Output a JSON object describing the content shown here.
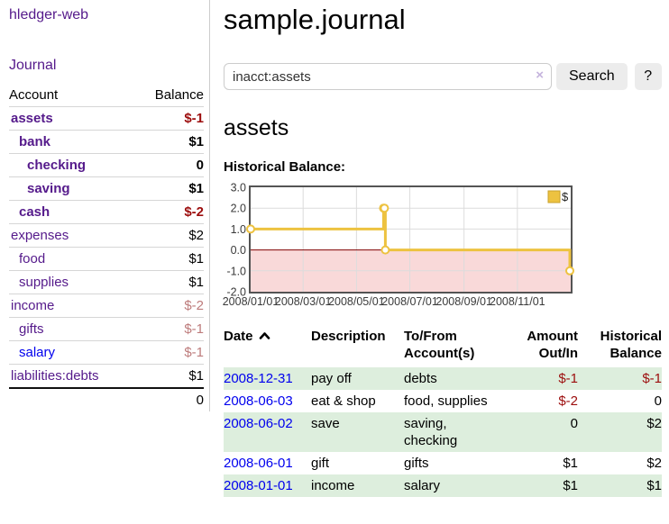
{
  "colors": {
    "link_purple": "#551A8B",
    "link_blue": "#0000EE",
    "negative_strong": "#9c0d0d",
    "negative_soft": "#bd7b7b",
    "row_green": "#ddeedd",
    "button_gray": "#ececec"
  },
  "sidebar": {
    "brand": "hledger-web",
    "journal_link": "Journal",
    "accounts_table": {
      "headers": [
        "Account",
        "Balance"
      ],
      "rows": [
        {
          "name": "assets",
          "level": 0,
          "bold": true,
          "link": "purple",
          "balance": "$-1",
          "tone": "neg-strong"
        },
        {
          "name": "bank",
          "level": 1,
          "bold": true,
          "link": "purple",
          "balance": "$1",
          "tone": ""
        },
        {
          "name": "checking",
          "level": 2,
          "bold": true,
          "link": "purple",
          "balance": "0",
          "tone": ""
        },
        {
          "name": "saving",
          "level": 2,
          "bold": true,
          "link": "purple",
          "balance": "$1",
          "tone": ""
        },
        {
          "name": "cash",
          "level": 1,
          "bold": true,
          "link": "purple",
          "balance": "$-2",
          "tone": "neg-strong"
        },
        {
          "name": "expenses",
          "level": 0,
          "bold": false,
          "link": "purple",
          "balance": "$2",
          "tone": ""
        },
        {
          "name": "food",
          "level": 1,
          "bold": false,
          "link": "purple",
          "balance": "$1",
          "tone": ""
        },
        {
          "name": "supplies",
          "level": 1,
          "bold": false,
          "link": "purple",
          "balance": "$1",
          "tone": ""
        },
        {
          "name": "income",
          "level": 0,
          "bold": false,
          "link": "purple",
          "balance": "$-2",
          "tone": "neg-soft"
        },
        {
          "name": "gifts",
          "level": 1,
          "bold": false,
          "link": "purple",
          "balance": "$-1",
          "tone": "neg-soft"
        },
        {
          "name": "salary",
          "level": 1,
          "bold": false,
          "link": "blue",
          "balance": "$-1",
          "tone": "neg-soft"
        },
        {
          "name": "liabilities:debts",
          "level": 0,
          "bold": false,
          "link": "purple",
          "balance": "$1",
          "tone": ""
        }
      ],
      "total": "0"
    }
  },
  "main": {
    "title": "sample.journal",
    "search": {
      "value": "inacct:assets",
      "clear_icon": "×",
      "search_button": "Search",
      "help_button": "?"
    },
    "section_heading": "assets",
    "chart_label": "Historical Balance:",
    "transactions": {
      "headers": {
        "date": "Date",
        "description": "Description",
        "accounts": "To/From Account(s)",
        "amount": "Amount Out/In",
        "balance": "Historical Balance"
      },
      "rows": [
        {
          "date": "2008-12-31",
          "description": "pay off",
          "accounts": "debts",
          "amount": "$-1",
          "balance": "$-1"
        },
        {
          "date": "2008-06-03",
          "description": "eat & shop",
          "accounts": "food, supplies",
          "amount": "$-2",
          "balance": "0"
        },
        {
          "date": "2008-06-02",
          "description": "save",
          "accounts": "saving, checking",
          "amount": "0",
          "balance": "$2"
        },
        {
          "date": "2008-06-01",
          "description": "gift",
          "accounts": "gifts",
          "amount": "$1",
          "balance": "$2"
        },
        {
          "date": "2008-01-01",
          "description": "income",
          "accounts": "salary",
          "amount": "$1",
          "balance": "$1"
        }
      ]
    }
  },
  "chart_data": {
    "type": "line",
    "step": true,
    "title": "Historical Balance",
    "series": [
      {
        "name": "$",
        "color": "#EDC240",
        "points": [
          {
            "x": "2008-01-01",
            "y": 1
          },
          {
            "x": "2008-06-01",
            "y": 2
          },
          {
            "x": "2008-06-02",
            "y": 2
          },
          {
            "x": "2008-06-03",
            "y": 0
          },
          {
            "x": "2008-12-31",
            "y": -1
          }
        ]
      }
    ],
    "x_ticks": [
      "2008/01/01",
      "2008/03/01",
      "2008/05/01",
      "2008/07/01",
      "2008/09/01",
      "2008/11/01"
    ],
    "y_ticks": [
      3.0,
      2.0,
      1.0,
      0.0,
      -1.0,
      -2.0
    ],
    "xlim": [
      "2008-01-01",
      "2009-01-01"
    ],
    "ylim": [
      -2,
      3
    ],
    "grid": true,
    "legend_position": "top-right",
    "grid_color": "#dcdcdc",
    "border_color": "#545454",
    "negative_region_color": "#f9d9d9",
    "zero_line_color": "#800000",
    "tick_label_color": "#3a3a3a"
  }
}
